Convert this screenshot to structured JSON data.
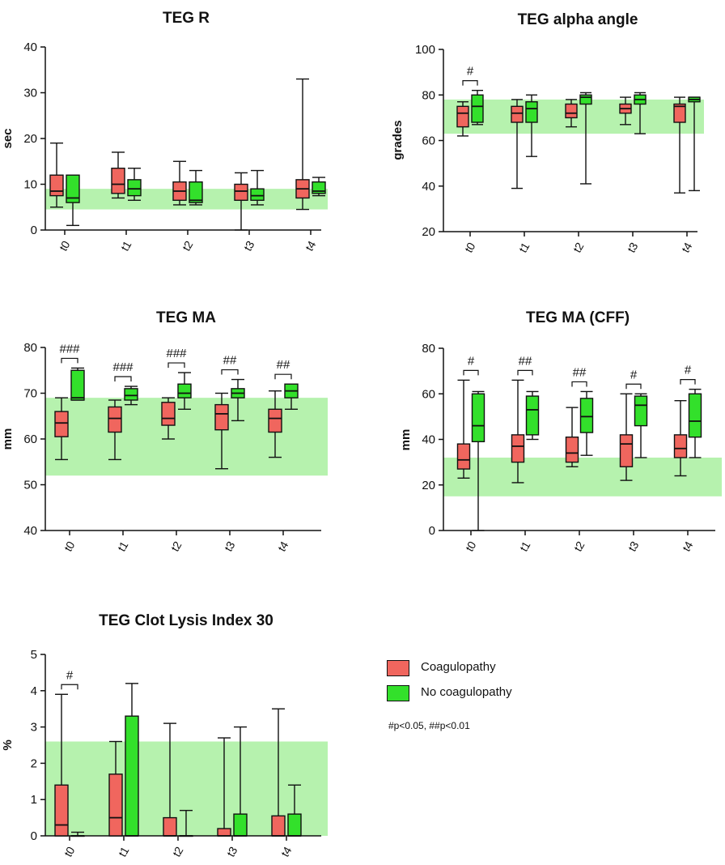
{
  "legend": {
    "items": [
      {
        "label": "Coagulopathy",
        "color": "#f0665e"
      },
      {
        "label": "No coagulopathy",
        "color": "#33e02b"
      }
    ],
    "note": "#p<0.05, ##p<0.01"
  },
  "colors": {
    "coag": "#f0665e",
    "nocoag": "#33e02b",
    "reference_band": "#b6f2ae",
    "axis": "#111111"
  },
  "chart_data": [
    {
      "type": "box",
      "title": "TEG R",
      "ylabel": "sec",
      "xlabel": "",
      "ylim": [
        0,
        40
      ],
      "yticks": [
        0,
        10,
        20,
        30,
        40
      ],
      "categories": [
        "t0",
        "t1",
        "t2",
        "t3",
        "t4"
      ],
      "reference_range": [
        4.5,
        9
      ],
      "series": [
        {
          "name": "Coagulopathy",
          "boxes": [
            {
              "min": 5,
              "q1": 7.5,
              "median": 8.5,
              "q3": 12,
              "max": 19
            },
            {
              "min": 7,
              "q1": 8,
              "median": 10,
              "q3": 13.5,
              "max": 17
            },
            {
              "min": 5.5,
              "q1": 6.5,
              "median": 8.5,
              "q3": 10.5,
              "max": 15
            },
            {
              "min": 0,
              "q1": 6.5,
              "median": 8.5,
              "q3": 10,
              "max": 12.5
            },
            {
              "min": 4.5,
              "q1": 7,
              "median": 9,
              "q3": 11,
              "max": 33
            }
          ]
        },
        {
          "name": "No coagulopathy",
          "boxes": [
            {
              "min": 1,
              "q1": 6,
              "median": 7,
              "q3": 12,
              "max": 12
            },
            {
              "min": 6.5,
              "q1": 7.5,
              "median": 9,
              "q3": 11,
              "max": 13.5
            },
            {
              "min": 5.5,
              "q1": 6,
              "median": 6.5,
              "q3": 10.5,
              "max": 13
            },
            {
              "min": 5.5,
              "q1": 6.5,
              "median": 7.5,
              "q3": 9,
              "max": 13
            },
            {
              "min": 7.5,
              "q1": 8,
              "median": 8.5,
              "q3": 10.5,
              "max": 11.5
            }
          ]
        }
      ],
      "annotations": []
    },
    {
      "type": "box",
      "title": "TEG alpha angle",
      "ylabel": "grades",
      "xlabel": "",
      "ylim": [
        20,
        100
      ],
      "yticks": [
        20,
        40,
        60,
        80,
        100
      ],
      "categories": [
        "t0",
        "t1",
        "t2",
        "t3",
        "t4"
      ],
      "reference_range": [
        63,
        78
      ],
      "series": [
        {
          "name": "Coagulopathy",
          "boxes": [
            {
              "min": 62,
              "q1": 66,
              "median": 72,
              "q3": 75,
              "max": 77
            },
            {
              "min": 39,
              "q1": 68,
              "median": 72,
              "q3": 75,
              "max": 78
            },
            {
              "min": 66,
              "q1": 70,
              "median": 72,
              "q3": 76,
              "max": 78
            },
            {
              "min": 67,
              "q1": 72,
              "median": 74,
              "q3": 76,
              "max": 79
            },
            {
              "min": 37,
              "q1": 68,
              "median": 75,
              "q3": 76,
              "max": 79
            }
          ]
        },
        {
          "name": "No coagulopathy",
          "boxes": [
            {
              "min": 67,
              "q1": 68,
              "median": 75,
              "q3": 80,
              "max": 82
            },
            {
              "min": 53,
              "q1": 68,
              "median": 74,
              "q3": 77,
              "max": 80
            },
            {
              "min": 41,
              "q1": 76,
              "median": 79,
              "q3": 80,
              "max": 81
            },
            {
              "min": 63,
              "q1": 76,
              "median": 78,
              "q3": 80,
              "max": 81
            },
            {
              "min": 38,
              "q1": 77,
              "median": 78,
              "q3": 79,
              "max": 79
            }
          ]
        }
      ],
      "annotations": [
        {
          "category": "t0",
          "label": "#"
        }
      ]
    },
    {
      "type": "box",
      "title": "TEG MA",
      "ylabel": "mm",
      "xlabel": "",
      "ylim": [
        40,
        80
      ],
      "yticks": [
        40,
        50,
        60,
        70,
        80
      ],
      "categories": [
        "t0",
        "t1",
        "t2",
        "t3",
        "t4"
      ],
      "reference_range": [
        52,
        69
      ],
      "series": [
        {
          "name": "Coagulopathy",
          "boxes": [
            {
              "min": 55.5,
              "q1": 60.5,
              "median": 63.5,
              "q3": 66,
              "max": 69
            },
            {
              "min": 55.5,
              "q1": 61.5,
              "median": 64.5,
              "q3": 67,
              "max": 68.5
            },
            {
              "min": 60,
              "q1": 63,
              "median": 64.5,
              "q3": 68,
              "max": 69
            },
            {
              "min": 53.5,
              "q1": 62,
              "median": 65.5,
              "q3": 67.5,
              "max": 70
            },
            {
              "min": 56,
              "q1": 61.5,
              "median": 64.5,
              "q3": 66.5,
              "max": 70.5
            }
          ]
        },
        {
          "name": "No coagulopathy",
          "boxes": [
            {
              "min": 68.5,
              "q1": 68.5,
              "median": 69,
              "q3": 75,
              "max": 75.5
            },
            {
              "min": 67.5,
              "q1": 68.5,
              "median": 69.5,
              "q3": 71,
              "max": 71.5
            },
            {
              "min": 66.5,
              "q1": 69,
              "median": 70,
              "q3": 72,
              "max": 74.5
            },
            {
              "min": 64,
              "q1": 69,
              "median": 70,
              "q3": 71,
              "max": 73
            },
            {
              "min": 66.5,
              "q1": 69,
              "median": 70.5,
              "q3": 72,
              "max": 72
            }
          ]
        }
      ],
      "annotations": [
        {
          "category": "t0",
          "label": "###"
        },
        {
          "category": "t1",
          "label": "###"
        },
        {
          "category": "t2",
          "label": "###"
        },
        {
          "category": "t3",
          "label": "##"
        },
        {
          "category": "t4",
          "label": "##"
        }
      ]
    },
    {
      "type": "box",
      "title": "TEG MA (CFF)",
      "ylabel": "mm",
      "xlabel": "",
      "ylim": [
        0,
        80
      ],
      "yticks": [
        0,
        20,
        40,
        60,
        80
      ],
      "categories": [
        "t0",
        "t1",
        "t2",
        "t3",
        "t4"
      ],
      "reference_range": [
        15,
        32
      ],
      "series": [
        {
          "name": "Coagulopathy",
          "boxes": [
            {
              "min": 23,
              "q1": 27,
              "median": 31,
              "q3": 38,
              "max": 66
            },
            {
              "min": 21,
              "q1": 30,
              "median": 37,
              "q3": 42,
              "max": 66
            },
            {
              "min": 28,
              "q1": 30,
              "median": 34,
              "q3": 41,
              "max": 54
            },
            {
              "min": 22,
              "q1": 28,
              "median": 38,
              "q3": 42,
              "max": 60
            },
            {
              "min": 24,
              "q1": 32,
              "median": 36,
              "q3": 42,
              "max": 57
            }
          ]
        },
        {
          "name": "No coagulopathy",
          "boxes": [
            {
              "min": 0,
              "q1": 39,
              "median": 46,
              "q3": 60,
              "max": 61
            },
            {
              "min": 40,
              "q1": 42,
              "median": 53,
              "q3": 59,
              "max": 61
            },
            {
              "min": 33,
              "q1": 43,
              "median": 50,
              "q3": 58,
              "max": 61
            },
            {
              "min": 32,
              "q1": 46,
              "median": 55,
              "q3": 59,
              "max": 60
            },
            {
              "min": 32,
              "q1": 41,
              "median": 48,
              "q3": 60,
              "max": 62
            }
          ]
        }
      ],
      "annotations": [
        {
          "category": "t0",
          "label": "#"
        },
        {
          "category": "t1",
          "label": "##"
        },
        {
          "category": "t2",
          "label": "##"
        },
        {
          "category": "t3",
          "label": "#"
        },
        {
          "category": "t4",
          "label": "#"
        }
      ]
    },
    {
      "type": "box",
      "title": "TEG Clot Lysis Index 30",
      "ylabel": "%",
      "xlabel": "",
      "ylim": [
        0,
        5
      ],
      "yticks": [
        0,
        1,
        2,
        3,
        4,
        5
      ],
      "categories": [
        "t0",
        "t1",
        "t2",
        "t3",
        "t4"
      ],
      "reference_range": [
        0,
        2.6
      ],
      "series": [
        {
          "name": "Coagulopathy",
          "boxes": [
            {
              "min": 0,
              "q1": 0,
              "median": 0.3,
              "q3": 1.4,
              "max": 3.9
            },
            {
              "min": 0,
              "q1": 0,
              "median": 0.5,
              "q3": 1.7,
              "max": 2.6
            },
            {
              "min": 0,
              "q1": 0,
              "median": 0,
              "q3": 0.5,
              "max": 3.1
            },
            {
              "min": 0,
              "q1": 0,
              "median": 0,
              "q3": 0.2,
              "max": 2.7
            },
            {
              "min": 0,
              "q1": 0,
              "median": 0,
              "q3": 0.55,
              "max": 3.5
            }
          ]
        },
        {
          "name": "No coagulopathy",
          "boxes": [
            {
              "min": 0,
              "q1": 0,
              "median": 0,
              "q3": 0,
              "max": 0.1
            },
            {
              "min": 0,
              "q1": 0,
              "median": 0,
              "q3": 3.3,
              "max": 4.2
            },
            {
              "min": 0,
              "q1": 0,
              "median": 0,
              "q3": 0,
              "max": 0.7
            },
            {
              "min": 0,
              "q1": 0,
              "median": 0,
              "q3": 0.6,
              "max": 3.0
            },
            {
              "min": 0,
              "q1": 0,
              "median": 0,
              "q3": 0.6,
              "max": 1.4
            }
          ]
        }
      ],
      "annotations": [
        {
          "category": "t0",
          "label": "#"
        }
      ]
    }
  ]
}
